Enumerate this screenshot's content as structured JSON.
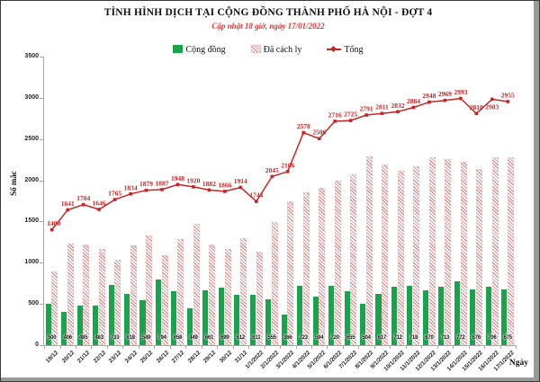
{
  "header": {
    "title": "TÌNH HÌNH DỊCH TẠI CỘNG ĐỒNG THÀNH PHỐ HÀ NỘI - ĐỢT 4",
    "subtitle": "Cập nhật 18 giờ, ngày 17/01/2022"
  },
  "legend": {
    "items": [
      {
        "label": "Cộng đồng",
        "swatch": "solid-green-square"
      },
      {
        "label": "Đã cách ly",
        "swatch": "red-hatched-square"
      },
      {
        "label": "Tổng",
        "swatch": "red-line-marker"
      }
    ]
  },
  "colors": {
    "community_green": "#18a34c",
    "quarantine_hatch_red": "#d97a7a",
    "total_line_red": "#c42525",
    "subtitle_red": "#e03131"
  },
  "chart_data": {
    "type": "combo-bar-line",
    "title": "TÌNH HÌNH DỊCH TẠI CỘNG ĐỒNG THÀNH PHỐ HÀ NỘI - ĐỢT 4",
    "subtitle": "Cập nhật 18 giờ, ngày 17/01/2022",
    "xlabel": "Ngày",
    "ylabel": "Số mắc",
    "ylim": [
      0,
      3500
    ],
    "y_ticks": [
      0,
      500,
      1000,
      1500,
      2000,
      2500,
      3000,
      3500
    ],
    "grid": false,
    "legend_position": "top",
    "categories": [
      "19/12",
      "20/12",
      "21/12",
      "22/12",
      "23/12",
      "24/12",
      "25/12",
      "26/12",
      "27/12",
      "28/12",
      "29/12",
      "30/12",
      "31/12",
      "1/1/2022",
      "2/1/2022",
      "3/1/2022",
      "4/1/2022",
      "5/1/2022",
      "6/1/2022",
      "7/1/2022",
      "8/1/2022",
      "9/1/2022",
      "10/1/2022",
      "11/1/2022",
      "12/1/2022",
      "13/1/2022",
      "14/1/2022",
      "15/1/2022",
      "16/1/2022",
      "17/1/2022"
    ],
    "series": [
      {
        "name": "Cộng đồng",
        "type": "bar",
        "labels_shown": true,
        "values": [
          500,
          406,
          485,
          483,
          733,
          618,
          549,
          794,
          658,
          449,
          661,
          699,
          612,
          611,
          555,
          366,
          723,
          594,
          720,
          655,
          504,
          617,
          712,
          718,
          670,
          713,
          772,
          676,
          706,
          675
        ]
      },
      {
        "name": "Đã cách ly",
        "type": "bar",
        "labels_shown": false,
        "values_estimated_as_total_minus_community": true,
        "values": [
          900,
          1235,
          1219,
          1163,
          1032,
          1216,
          1330,
          1093,
          1290,
          1471,
          1221,
          1167,
          1302,
          1133,
          1490,
          1740,
          1855,
          1912,
          1996,
          2070,
          2287,
          2194,
          2120,
          2166,
          2278,
          2256,
          2221,
          2134,
          2277,
          2280
        ]
      },
      {
        "name": "Tổng",
        "type": "line",
        "labels_shown": true,
        "values": [
          1400,
          1641,
          1704,
          1646,
          1765,
          1834,
          1879,
          1887,
          1948,
          1920,
          1882,
          1866,
          1914,
          1744,
          2045,
          2106,
          2578,
          2506,
          2716,
          2725,
          2791,
          2811,
          2832,
          2884,
          2948,
          2969,
          2993,
          2810,
          2983,
          2955
        ]
      }
    ]
  }
}
